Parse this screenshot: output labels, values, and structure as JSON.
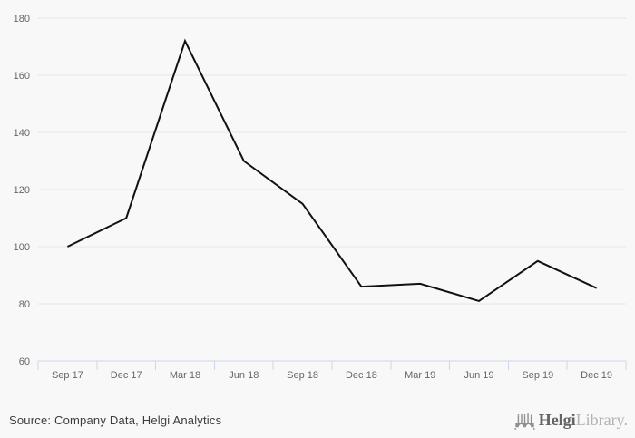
{
  "chart_data": {
    "type": "line",
    "title": "",
    "xlabel": "",
    "ylabel": "",
    "categories": [
      "Sep 17",
      "Dec 17",
      "Mar 18",
      "Jun 18",
      "Sep 18",
      "Dec 18",
      "Mar 19",
      "Jun 19",
      "Sep 19",
      "Dec 19"
    ],
    "values": [
      100,
      110,
      172,
      130,
      115,
      86,
      87,
      81,
      95,
      85.5
    ],
    "ylim": [
      60,
      180
    ],
    "y_ticks": [
      60,
      80,
      100,
      120,
      140,
      160,
      180
    ],
    "grid": true,
    "legend": "none",
    "line_color": "#111111",
    "background_color": "#f8f8f8",
    "gridline_color": "#e6e6e6",
    "axis_line_color": "#ccd6eb",
    "axis_label_color": "#666666"
  },
  "footer": {
    "source": "Source: Company Data, Helgi Analytics",
    "logo": {
      "icon": "bridge-skyline-icon",
      "text_primary": "Helgi",
      "text_secondary": "Library.",
      "primary_color": "#636363",
      "secondary_color": "#b2b2b2",
      "icon_color": "#8f8f8f"
    }
  }
}
